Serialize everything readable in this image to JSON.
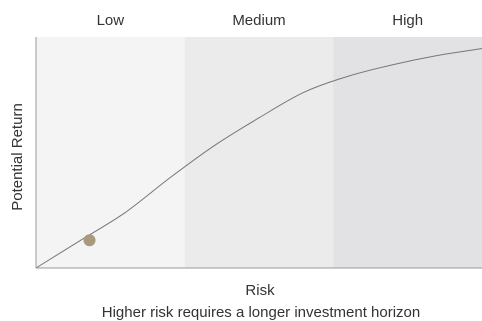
{
  "chart_data": {
    "type": "line",
    "xlabel": "Risk",
    "ylabel": "Potential Return",
    "caption": "Higher risk requires a longer investment horizon",
    "bands": [
      {
        "label": "Low",
        "color": "#f4f4f4"
      },
      {
        "label": "Medium",
        "color": "#ebebeb"
      },
      {
        "label": "High",
        "color": "#e2e2e4"
      }
    ],
    "curve": {
      "color": "#777777",
      "x": [
        0,
        0.1,
        0.2,
        0.3,
        0.4,
        0.5,
        0.6,
        0.7,
        0.8,
        0.9,
        1.0
      ],
      "y": [
        0,
        0.12,
        0.24,
        0.39,
        0.53,
        0.65,
        0.76,
        0.83,
        0.88,
        0.92,
        0.95
      ]
    },
    "marker": {
      "x": 0.12,
      "y": 0.12,
      "color": "#a89a7c"
    },
    "xlim": [
      0,
      1
    ],
    "ylim": [
      0,
      1
    ],
    "axis_color": "#999999"
  }
}
